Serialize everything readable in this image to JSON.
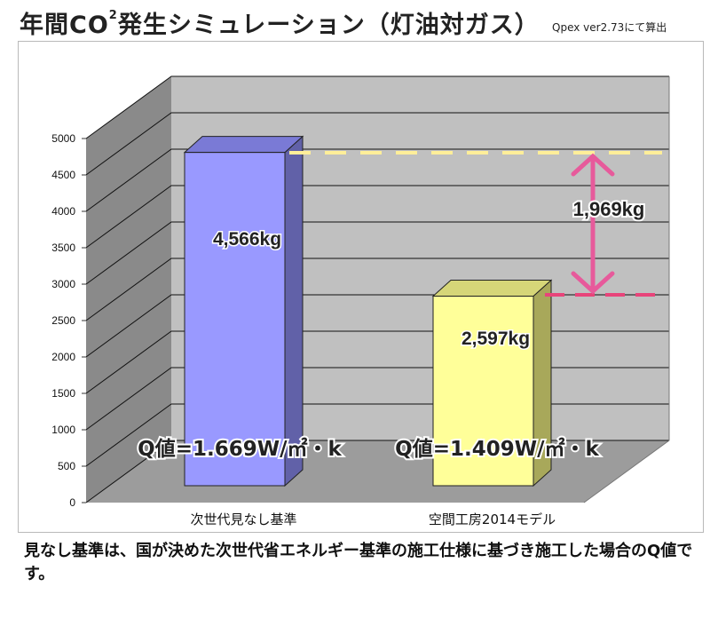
{
  "title": {
    "main": "年間CO",
    "sup": "2",
    "rest": "発生シミュレーション（灯油対ガス）"
  },
  "note": "Qpex ver2.73にて算出",
  "caption": "見なし基準は、国が決めた次世代省エネルギー基準の施工仕様に基づき施工した場合のQ値です。",
  "chart_data": {
    "type": "bar",
    "title": "年間CO2発生シミュレーション（灯油対ガス）",
    "categories": [
      "次世代見なし基準",
      "空間工房2014モデル"
    ],
    "values": [
      4566,
      2597
    ],
    "ylim": [
      0,
      5000
    ],
    "yticks": [
      0,
      500,
      1000,
      1500,
      2000,
      2500,
      3000,
      3500,
      4000,
      4500,
      5000
    ],
    "grid": true,
    "three_d": true,
    "bar_labels": [
      "4,566kg",
      "2,597kg"
    ],
    "q_labels": [
      "Q値=1.669W/㎡・k",
      "Q値=1.409W/㎡・k"
    ],
    "difference_label": "1,969kg",
    "colors": {
      "bar1_front": "#9999ff",
      "bar1_side": "#6161a8",
      "bar1_top": "#7a7ad6",
      "bar2_front": "#ffff99",
      "bar2_side": "#a8a85a",
      "bar2_top": "#d6d678",
      "back_wall": "#c0c0c0",
      "side_wall": "#8a8a8a",
      "floor": "#9c9c9c",
      "ref_line_1": "#ffee99",
      "ref_line_2": "#e8447a",
      "arrow": "#e75a9b"
    }
  }
}
